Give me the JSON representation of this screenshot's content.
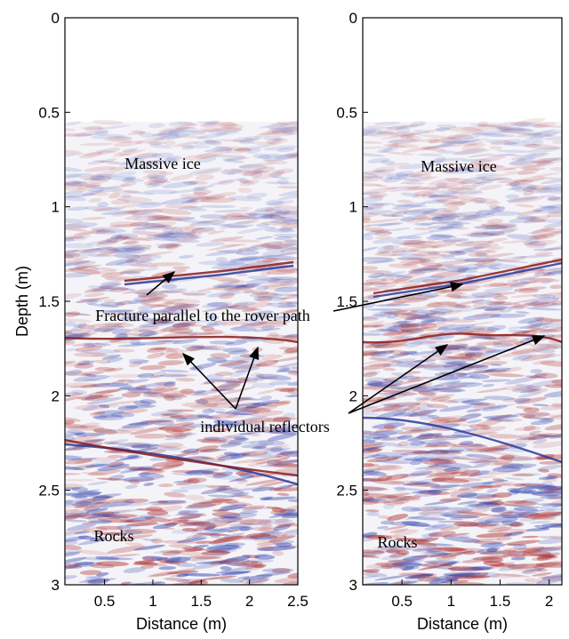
{
  "chart_data": [
    {
      "type": "radargram",
      "ylabel": "Depth (m)",
      "xlabel": "Distance (m)",
      "xlim": [
        0.09,
        2.5
      ],
      "ylim": [
        0,
        3
      ],
      "data_top": 0.55,
      "xticks": [
        0.5,
        1,
        1.5,
        2,
        2.5
      ],
      "yticks": [
        0,
        0.5,
        1,
        1.5,
        2,
        2.5,
        3
      ],
      "annotations": [
        "Massive ice",
        "Rocks"
      ]
    },
    {
      "type": "radargram",
      "xlabel": "Distance (m)",
      "xlim": [
        0.1,
        2.13
      ],
      "ylim": [
        0,
        3
      ],
      "data_top": 0.55,
      "xticks": [
        0.5,
        1,
        1.5,
        2
      ],
      "yticks": [
        0,
        0.5,
        1,
        1.5,
        2,
        2.5,
        3
      ],
      "annotations": [
        "Massive ice",
        "Rocks"
      ]
    }
  ],
  "annotations": [
    "Fracture parallel to the rover path",
    "individual reflectors"
  ]
}
